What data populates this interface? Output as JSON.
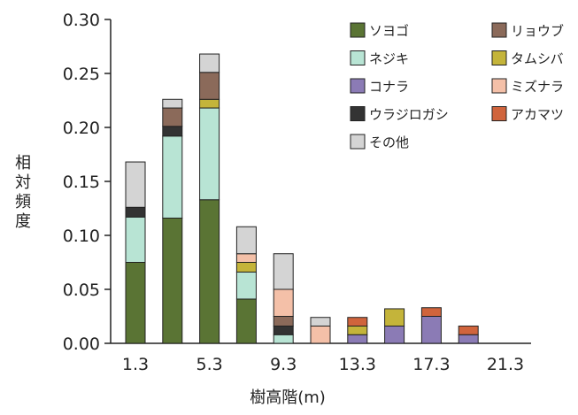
{
  "chart_data": {
    "type": "bar",
    "stacked": true,
    "xlabel": "樹高階(m)",
    "ylabel": "相対頻度",
    "ylim": [
      0,
      0.3
    ],
    "yticks": [
      "0.00",
      "0.05",
      "0.10",
      "0.15",
      "0.20",
      "0.25",
      "0.30"
    ],
    "categories": [
      "1.3",
      "3.3",
      "5.3",
      "7.3",
      "9.3",
      "11.3",
      "13.3",
      "15.3",
      "17.3",
      "19.3",
      "21.3"
    ],
    "xticks": [
      "1.3",
      "5.3",
      "9.3",
      "13.3",
      "17.3",
      "21.3"
    ],
    "legend_position": "top-right",
    "series": [
      {
        "name": "ソヨゴ",
        "color": "#5a7434",
        "values": [
          0.075,
          0.116,
          0.133,
          0.041,
          0,
          0,
          0,
          0,
          0,
          0,
          0
        ]
      },
      {
        "name": "ネジキ",
        "color": "#b8e4d4",
        "values": [
          0.042,
          0.076,
          0.085,
          0.025,
          0.008,
          0,
          0,
          0,
          0,
          0,
          0
        ]
      },
      {
        "name": "コナラ",
        "color": "#8b7bb5",
        "values": [
          0,
          0,
          0,
          0,
          0,
          0,
          0.008,
          0.016,
          0.025,
          0.008,
          0
        ]
      },
      {
        "name": "ウラジロガシ",
        "color": "#333333",
        "values": [
          0.009,
          0.009,
          0,
          0,
          0.008,
          0,
          0,
          0,
          0,
          0,
          0
        ]
      },
      {
        "name": "その他",
        "color": "#d4d4d4",
        "values": [
          0.042,
          0.008,
          0.017,
          0.025,
          0.033,
          0.008,
          0,
          0,
          0,
          0,
          0
        ]
      },
      {
        "name": "リョウブ",
        "color": "#8b6a5a",
        "values": [
          0,
          0.017,
          0.025,
          0,
          0.009,
          0,
          0,
          0,
          0,
          0,
          0
        ]
      },
      {
        "name": "タムシバ",
        "color": "#c4b43a",
        "values": [
          0,
          0,
          0.008,
          0.009,
          0,
          0,
          0.008,
          0.016,
          0,
          0,
          0
        ]
      },
      {
        "name": "ミズナラ",
        "color": "#f4c0a8",
        "values": [
          0,
          0,
          0,
          0.008,
          0.025,
          0.016,
          0,
          0,
          0,
          0,
          0
        ]
      },
      {
        "name": "アカマツ",
        "color": "#d0643c",
        "values": [
          0,
          0,
          0,
          0,
          0,
          0,
          0.008,
          0,
          0.008,
          0.008,
          0
        ]
      }
    ],
    "stack_order": [
      "ソヨゴ",
      "ネジキ",
      "コナラ",
      "ウラジロガシ",
      "タムシバ",
      "リョウブ",
      "ミズナラ",
      "その他",
      "アカマツ"
    ],
    "legend_order": [
      "ソヨゴ",
      "リョウブ",
      "ネジキ",
      "タムシバ",
      "コナラ",
      "ミズナラ",
      "ウラジロガシ",
      "アカマツ",
      "その他"
    ]
  }
}
